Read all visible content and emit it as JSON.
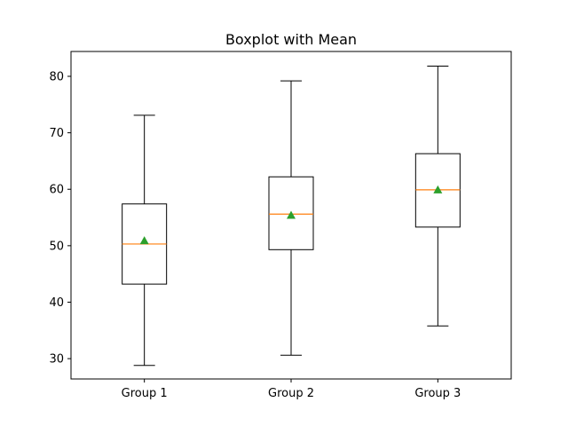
{
  "chart_data": {
    "type": "boxplot",
    "title": "Boxplot with Mean",
    "xlabel": "",
    "ylabel": "",
    "categories": [
      "Group 1",
      "Group 2",
      "Group 3"
    ],
    "ylim": [
      26.4,
      84.4
    ],
    "yticks": [
      30,
      40,
      50,
      60,
      70,
      80
    ],
    "grid": false,
    "boxes": [
      {
        "label": "Group 1",
        "whisker_low": 28.8,
        "q1": 43.2,
        "median": 50.3,
        "q3": 57.4,
        "whisker_high": 73.1,
        "mean": 50.9
      },
      {
        "label": "Group 2",
        "whisker_low": 30.6,
        "q1": 49.3,
        "median": 55.6,
        "q3": 62.2,
        "whisker_high": 79.2,
        "mean": 55.4
      },
      {
        "label": "Group 3",
        "whisker_low": 35.8,
        "q1": 53.3,
        "median": 59.9,
        "q3": 66.3,
        "whisker_high": 81.8,
        "mean": 59.9
      }
    ],
    "colors": {
      "box": "#000000",
      "median": "#ff7f0e",
      "mean": "#2ca02c"
    }
  }
}
